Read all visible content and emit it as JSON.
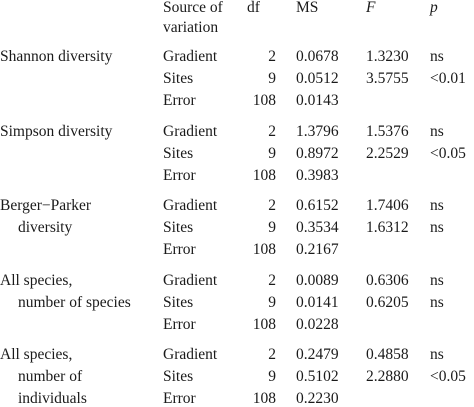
{
  "header": {
    "source": [
      "Source of",
      "variation"
    ],
    "df": "df",
    "ms": "MS",
    "f": "F",
    "p": "p"
  },
  "groups": [
    {
      "label": [
        "Shannon diversity"
      ],
      "rows": [
        [
          "Gradient",
          "2",
          "0.0678",
          "1.3230",
          "ns"
        ],
        [
          "Sites",
          "9",
          "0.0512",
          "3.5755",
          "<0.01"
        ],
        [
          "Error",
          "108",
          "0.0143"
        ]
      ]
    },
    {
      "label": [
        "Simpson diversity"
      ],
      "rows": [
        [
          "Gradient",
          "2",
          "1.3796",
          "1.5376",
          "ns"
        ],
        [
          "Sites",
          "9",
          "0.8972",
          "2.2529",
          "<0.05"
        ],
        [
          "Error",
          "108",
          "0.3983"
        ]
      ]
    },
    {
      "label": [
        "Berger−Parker",
        "diversity"
      ],
      "rows": [
        [
          "Gradient",
          "2",
          "0.6152",
          "1.7406",
          "ns"
        ],
        [
          "Sites",
          "9",
          "0.3534",
          "1.6312",
          "ns"
        ],
        [
          "Error",
          "108",
          "0.2167"
        ]
      ]
    },
    {
      "label": [
        "All species,",
        "number of species"
      ],
      "rows": [
        [
          "Gradient",
          "2",
          "0.0089",
          "0.6306",
          "ns"
        ],
        [
          "Sites",
          "9",
          "0.0141",
          "0.6205",
          "ns"
        ],
        [
          "Error",
          "108",
          "0.0228"
        ]
      ]
    },
    {
      "label": [
        "All species,",
        "number of",
        "individuals"
      ],
      "rows": [
        [
          "Gradient",
          "2",
          "0.2479",
          "0.4858",
          "ns"
        ],
        [
          "Sites",
          "9",
          "0.5102",
          "2.2880",
          "<0.05"
        ],
        [
          "Error",
          "108",
          "0.2230"
        ]
      ]
    }
  ]
}
